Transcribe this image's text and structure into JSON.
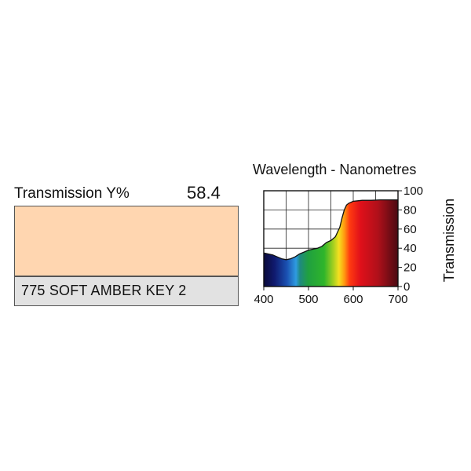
{
  "filter": {
    "transmission_label": "Transmission Y%",
    "transmission_value": "58.4",
    "name": "775 SOFT AMBER KEY 2",
    "swatch_color": "#FFD6B0"
  },
  "chart_data": {
    "type": "area",
    "title": "Wavelength - Nanometres",
    "xlabel": "Wavelength - Nanometres",
    "ylabel": "Transmission",
    "xlim": [
      400,
      700
    ],
    "ylim": [
      0,
      100
    ],
    "x_ticks": [
      400,
      500,
      600,
      700
    ],
    "y_ticks": [
      0,
      20,
      40,
      60,
      80,
      100
    ],
    "grid": true,
    "x": [
      400,
      410,
      420,
      430,
      440,
      450,
      460,
      470,
      480,
      490,
      500,
      510,
      520,
      530,
      540,
      550,
      560,
      570,
      575,
      580,
      585,
      590,
      600,
      610,
      620,
      640,
      660,
      680,
      700
    ],
    "y": [
      35,
      34,
      33,
      31,
      29,
      28,
      29,
      31,
      34,
      36,
      38,
      39,
      40,
      42,
      46,
      48,
      52,
      62,
      72,
      80,
      85,
      87,
      89,
      89.5,
      90,
      90,
      90.5,
      90.5,
      90.5
    ]
  }
}
